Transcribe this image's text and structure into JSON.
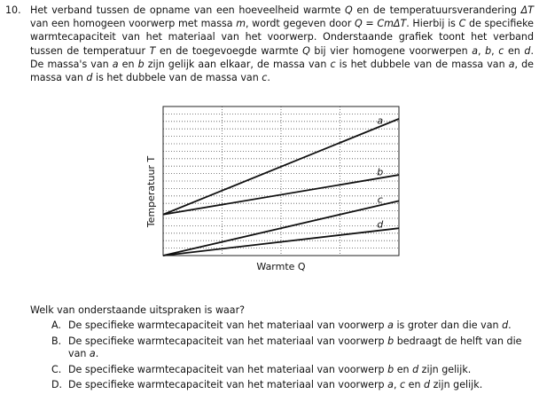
{
  "question": {
    "number": "10.",
    "text_parts": [
      "Het verband tussen de opname van een hoeveelheid warmte ",
      "Q",
      " en de temperatuursverandering ",
      "ΔT",
      " van een homogeen voorwerp met massa ",
      "m",
      ", wordt gegeven door ",
      "Q",
      " = ",
      "CmΔT",
      ". Hierbij is ",
      "C",
      " de specifieke warmtecapaciteit van het materiaal van het voorwerp. Onderstaande grafiek toont het verband tussen de temperatuur ",
      "T",
      " en de toegevoegde warmte ",
      "Q",
      " bij vier homogene voorwerpen ",
      "a",
      ", ",
      "b",
      ", ",
      "c",
      " en ",
      "d",
      ". De massa's van ",
      "a",
      " en ",
      "b",
      " zijn gelijk aan elkaar, de massa van ",
      "c",
      " is het dubbele van de massa van ",
      "a",
      ", de massa van ",
      "d",
      " is het dubbele van de massa van ",
      "c",
      "."
    ],
    "ask": "Welk van onderstaande uitspraken is waar?"
  },
  "chart_data": {
    "type": "line",
    "xlabel": "Warmte Q",
    "ylabel": "Temperatuur T",
    "grid": true,
    "x": [
      0,
      1
    ],
    "series": [
      {
        "name": "a",
        "values": [
          0.3,
          1.0
        ]
      },
      {
        "name": "b",
        "values": [
          0.3,
          0.59
        ]
      },
      {
        "name": "c",
        "values": [
          0.0,
          0.4
        ]
      },
      {
        "name": "d",
        "values": [
          0.0,
          0.2
        ]
      }
    ],
    "xlim": [
      0,
      1
    ],
    "ylim": [
      0,
      1.09
    ]
  },
  "options": [
    {
      "letter": "A.",
      "parts": [
        "De specifieke warmtecapaciteit van het materiaal van voorwerp ",
        "a",
        " is groter dan die van ",
        "d",
        "."
      ]
    },
    {
      "letter": "B.",
      "parts": [
        "De specifieke warmtecapaciteit van het materiaal van voorwerp ",
        "b",
        " bedraagt de helft van die van ",
        "a",
        "."
      ]
    },
    {
      "letter": "C.",
      "parts": [
        "De specifieke warmtecapaciteit van het materiaal van voorwerp ",
        "b",
        " en ",
        "d",
        " zijn gelijk."
      ]
    },
    {
      "letter": "D.",
      "parts": [
        "De specifieke warmtecapaciteit van het materiaal van voorwerp ",
        "a",
        ", ",
        "c",
        " en ",
        "d",
        " zijn gelijk."
      ]
    }
  ]
}
